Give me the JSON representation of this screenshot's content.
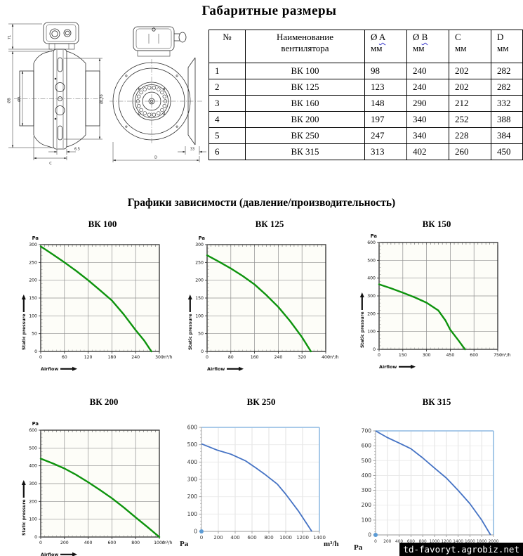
{
  "page": {
    "title": "Габаритные размеры",
    "charts_heading": "Графики зависимости (давление/производительность)",
    "watermark": "td-favoryt.agrobiz.net"
  },
  "table": {
    "columns": [
      {
        "top": "№",
        "wavy": "",
        "sub": ""
      },
      {
        "top": "Наименование",
        "wavy": "",
        "sub": "вентилятора"
      },
      {
        "top": "Ø ",
        "wavy": "A",
        "sub": "мм"
      },
      {
        "top": "Ø ",
        "wavy": "B",
        "sub": "мм"
      },
      {
        "top": "C",
        "wavy": "",
        "sub": "мм"
      },
      {
        "top": "D",
        "wavy": "",
        "sub": "мм"
      }
    ],
    "rows": [
      [
        "1",
        "ВК 100",
        "98",
        "240",
        "202",
        "282"
      ],
      [
        "2",
        "ВК 125",
        "123",
        "240",
        "202",
        "282"
      ],
      [
        "3",
        "ВК 160",
        "148",
        "290",
        "212",
        "332"
      ],
      [
        "4",
        "ВК 200",
        "197",
        "340",
        "252",
        "388"
      ],
      [
        "5",
        "ВК 250",
        "247",
        "340",
        "228",
        "384"
      ],
      [
        "6",
        "ВК 315",
        "313",
        "402",
        "260",
        "450"
      ]
    ]
  },
  "drawing": {
    "dims": {
      "height_71": "71",
      "dia_b": "ØB",
      "dia_a": "ØA",
      "dia_170": "Ø170",
      "offset_65": "6.5",
      "width_c": "C",
      "depth_33": "33",
      "width_d": "D"
    }
  },
  "chart_data": [
    {
      "type": "line",
      "style": "green",
      "title": "ВК 100",
      "xlabel": "Airflow",
      "ylabel": "Static pressure",
      "x_unit": "m³/h",
      "y_unit": "Pa",
      "x_max": 300,
      "y_max": 300,
      "grid": true,
      "color": "#0d930d",
      "x_ticks": [
        0,
        60,
        120,
        180,
        240,
        300
      ],
      "y_ticks": [
        0,
        50,
        100,
        150,
        200,
        250,
        300
      ],
      "points": [
        [
          0,
          295
        ],
        [
          30,
          273
        ],
        [
          60,
          250
        ],
        [
          90,
          226
        ],
        [
          120,
          200
        ],
        [
          150,
          172
        ],
        [
          180,
          143
        ],
        [
          210,
          104
        ],
        [
          240,
          60
        ],
        [
          262,
          30
        ],
        [
          280,
          0
        ]
      ]
    },
    {
      "type": "line",
      "style": "green",
      "title": "ВК 125",
      "xlabel": "Airflow",
      "ylabel": "Static pressure",
      "x_unit": "m³/h",
      "y_unit": "Pa",
      "x_max": 400,
      "y_max": 300,
      "grid": true,
      "color": "#0d930d",
      "x_ticks": [
        0,
        80,
        160,
        240,
        320,
        400
      ],
      "y_ticks": [
        0,
        50,
        100,
        150,
        200,
        250,
        300
      ],
      "points": [
        [
          0,
          270
        ],
        [
          40,
          252
        ],
        [
          80,
          233
        ],
        [
          120,
          212
        ],
        [
          160,
          188
        ],
        [
          200,
          158
        ],
        [
          240,
          125
        ],
        [
          280,
          85
        ],
        [
          320,
          40
        ],
        [
          350,
          0
        ]
      ]
    },
    {
      "type": "line",
      "style": "green",
      "title": "ВК 150",
      "xlabel": "Airflow",
      "ylabel": "Static pressure",
      "x_unit": "m³/h",
      "y_unit": "Pa",
      "x_max": 750,
      "y_max": 600,
      "grid": true,
      "color": "#0d930d",
      "x_ticks": [
        0,
        150,
        300,
        450,
        600,
        750
      ],
      "y_ticks": [
        0,
        100,
        200,
        300,
        400,
        500,
        600
      ],
      "points": [
        [
          0,
          365
        ],
        [
          75,
          343
        ],
        [
          150,
          318
        ],
        [
          225,
          292
        ],
        [
          300,
          262
        ],
        [
          375,
          218
        ],
        [
          420,
          162
        ],
        [
          450,
          110
        ],
        [
          500,
          52
        ],
        [
          543,
          0
        ]
      ]
    },
    {
      "type": "line",
      "style": "green",
      "title": "ВК 200",
      "xlabel": "Airflow",
      "ylabel": "Static pressure",
      "x_unit": "m³/h",
      "y_unit": "Pa",
      "x_max": 1000,
      "y_max": 600,
      "grid": true,
      "color": "#0d930d",
      "x_ticks": [
        0,
        200,
        400,
        600,
        800,
        1000
      ],
      "y_ticks": [
        0,
        100,
        200,
        300,
        400,
        500,
        600
      ],
      "points": [
        [
          0,
          440
        ],
        [
          100,
          414
        ],
        [
          200,
          385
        ],
        [
          300,
          349
        ],
        [
          400,
          308
        ],
        [
          500,
          264
        ],
        [
          600,
          218
        ],
        [
          700,
          166
        ],
        [
          800,
          110
        ],
        [
          900,
          56
        ],
        [
          1000,
          0
        ]
      ]
    },
    {
      "type": "line",
      "style": "blue",
      "title": "ВК 250",
      "x_unit": "m³/h",
      "y_unit": "Pa",
      "x_max": 1400,
      "y_max": 600,
      "grid": true,
      "color": "#4472c4",
      "origin_dot": true,
      "x_ticks": [
        0,
        200,
        400,
        600,
        800,
        1000,
        1200,
        1400
      ],
      "y_ticks": [
        0,
        100,
        200,
        300,
        400,
        500,
        600
      ],
      "points": [
        [
          0,
          505
        ],
        [
          180,
          470
        ],
        [
          350,
          445
        ],
        [
          520,
          408
        ],
        [
          650,
          365
        ],
        [
          750,
          330
        ],
        [
          900,
          273
        ],
        [
          1000,
          215
        ],
        [
          1150,
          118
        ],
        [
          1310,
          0
        ]
      ]
    },
    {
      "type": "line",
      "style": "blue",
      "title": "ВК 315",
      "x_unit": "m³/h",
      "y_unit": "Pa",
      "x_max": 2000,
      "y_max": 700,
      "grid": true,
      "color": "#4472c4",
      "origin_dot": true,
      "x_ticks": [
        0,
        200,
        400,
        600,
        800,
        1000,
        1200,
        1400,
        1600,
        1800,
        2000
      ],
      "y_ticks": [
        0,
        100,
        200,
        300,
        400,
        500,
        600,
        700
      ],
      "points": [
        [
          0,
          700
        ],
        [
          200,
          655
        ],
        [
          400,
          618
        ],
        [
          600,
          580
        ],
        [
          800,
          518
        ],
        [
          1000,
          450
        ],
        [
          1200,
          383
        ],
        [
          1400,
          300
        ],
        [
          1600,
          210
        ],
        [
          1800,
          100
        ],
        [
          1950,
          0
        ]
      ]
    }
  ]
}
